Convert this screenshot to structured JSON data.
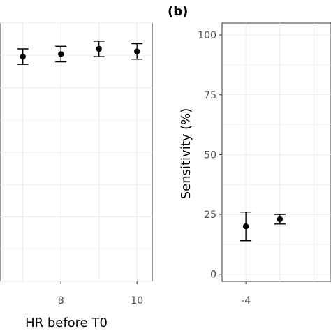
{
  "chart_data": [
    {
      "type": "scatter",
      "panel_label": "",
      "xlabel": "HR before T0",
      "ylabel": "",
      "xlim": [
        6.4,
        10.4
      ],
      "ylim": [
        0,
        100
      ],
      "xticks": [
        "8",
        "10"
      ],
      "grid": true,
      "error_bars": true,
      "points": [
        {
          "x": 7,
          "y": 87,
          "low": 84,
          "high": 90
        },
        {
          "x": 8,
          "y": 88,
          "low": 85,
          "high": 91
        },
        {
          "x": 9,
          "y": 90,
          "low": 87,
          "high": 93
        },
        {
          "x": 10,
          "y": 89,
          "low": 86,
          "high": 92
        }
      ]
    },
    {
      "type": "scatter",
      "panel_label": "(b)",
      "xlabel": "",
      "ylabel": "Sensitivity (%)",
      "xlim": [
        -4.7,
        -1.5
      ],
      "ylim": [
        -3,
        105
      ],
      "yticks": [
        "0",
        "25",
        "50",
        "75",
        "100"
      ],
      "xticks": [
        "-4"
      ],
      "grid": true,
      "error_bars": true,
      "points": [
        {
          "x": -4,
          "y": 20,
          "low": 14,
          "high": 26
        },
        {
          "x": -3,
          "y": 23,
          "low": 21,
          "high": 25
        }
      ]
    }
  ]
}
